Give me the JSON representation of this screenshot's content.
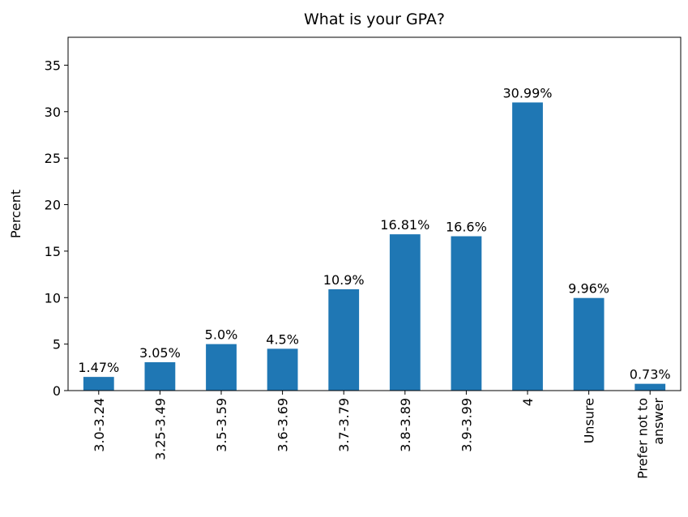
{
  "chart_data": {
    "type": "bar",
    "title": "What is your GPA?",
    "ylabel": "Percent",
    "categories": [
      "3.0-3.24",
      "3.25-3.49",
      "3.5-3.59",
      "3.6-3.69",
      "3.7-3.79",
      "3.8-3.89",
      "3.9-3.99",
      "4",
      "Unsure",
      "Prefer not to\nanswer"
    ],
    "values": [
      1.47,
      3.05,
      5.0,
      4.5,
      10.9,
      16.81,
      16.6,
      30.99,
      9.96,
      0.73
    ],
    "value_labels": [
      "1.47%",
      "3.05%",
      "5.0%",
      "4.5%",
      "10.9%",
      "16.81%",
      "16.6%",
      "30.99%",
      "9.96%",
      "0.73%"
    ],
    "color": "#1f77b4",
    "ylim": [
      0,
      38
    ],
    "yticks": [
      0,
      5,
      10,
      15,
      20,
      25,
      30,
      35
    ],
    "grid": false
  }
}
